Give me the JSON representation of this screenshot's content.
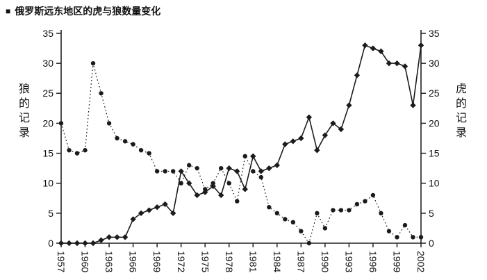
{
  "title": {
    "bullet": "■",
    "text": "俄罗斯远东地区的虎与狼数量变化"
  },
  "chart_data": {
    "type": "line",
    "title": "俄罗斯远东地区的虎与狼数量变化",
    "ylabel_left": "狼的记录",
    "ylabel_right": "虎的记录",
    "xlabel": "",
    "x_range": [
      1957,
      2002
    ],
    "ylim": [
      0,
      35
    ],
    "yticks": [
      0,
      5,
      10,
      15,
      20,
      25,
      30,
      35
    ],
    "xticks": [
      1957,
      1960,
      1963,
      1966,
      1969,
      1972,
      1975,
      1978,
      1981,
      1984,
      1987,
      1990,
      1993,
      1996,
      1999,
      2002
    ],
    "grid": false,
    "legend": "none",
    "color": "#1b1b1b",
    "x": [
      1957,
      1958,
      1959,
      1960,
      1961,
      1962,
      1963,
      1964,
      1965,
      1966,
      1967,
      1968,
      1969,
      1970,
      1971,
      1972,
      1973,
      1974,
      1975,
      1976,
      1977,
      1978,
      1979,
      1980,
      1981,
      1982,
      1983,
      1984,
      1985,
      1986,
      1987,
      1988,
      1989,
      1990,
      1991,
      1992,
      1993,
      1994,
      1995,
      1996,
      1997,
      1998,
      1999,
      2000,
      2001,
      2002
    ],
    "series": [
      {
        "key": "wolves",
        "name": "狼",
        "axis": "left",
        "marker": "circle",
        "line_style": "dotted",
        "values": [
          20,
          15.5,
          15,
          15.5,
          30,
          25,
          20,
          17.5,
          17,
          16.5,
          15.5,
          15,
          12,
          12,
          12,
          10,
          13,
          12.5,
          9,
          10,
          12.5,
          10,
          7,
          14.5,
          12,
          11,
          6,
          5,
          4,
          3.5,
          2,
          0,
          5,
          2.5,
          5.5,
          5.5,
          5.5,
          6.5,
          7,
          8,
          5,
          2,
          1,
          3,
          1,
          1
        ]
      },
      {
        "key": "tigers",
        "name": "虎",
        "axis": "right",
        "marker": "diamond",
        "line_style": "solid",
        "values": [
          0,
          0,
          0,
          0,
          0,
          0.5,
          1,
          1,
          1,
          4,
          5,
          5.5,
          6,
          6.5,
          5,
          12,
          10,
          8,
          8.5,
          9.5,
          8,
          12.5,
          12,
          9,
          14.5,
          12,
          12.5,
          13,
          16.5,
          17,
          17.5,
          21,
          15.5,
          18,
          20,
          19,
          23,
          28,
          33,
          32.5,
          32,
          30,
          30,
          29.5,
          23,
          33
        ]
      }
    ]
  }
}
